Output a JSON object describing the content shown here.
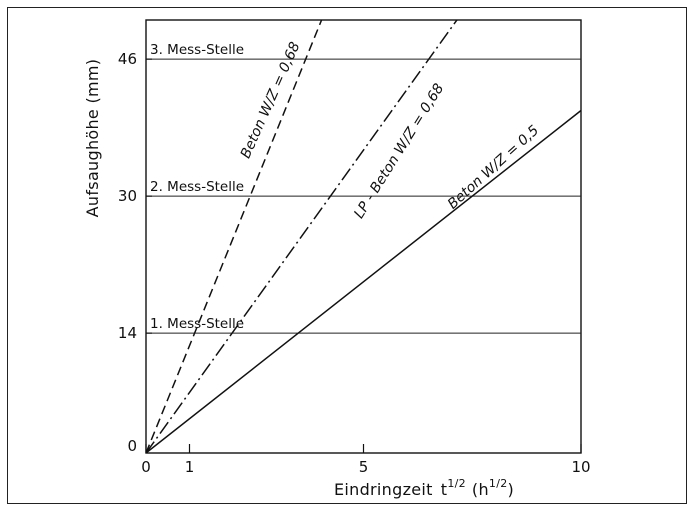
{
  "chart_data": {
    "type": "line",
    "xlabel": "Eindringzeit",
    "xlabel_symbol": "t",
    "xlabel_exp": "1/2",
    "xlabel_unit_open": "(h",
    "xlabel_unit_exp": "1/2",
    "xlabel_unit_close": ")",
    "ylabel": "Aufsaughöhe (mm)",
    "xlim": [
      0,
      10
    ],
    "ylim": [
      0,
      52
    ],
    "x_ticks": [
      {
        "value": 0,
        "label": "0"
      },
      {
        "value": 1,
        "label": "1"
      },
      {
        "value": 5,
        "label": "5"
      },
      {
        "value": 10,
        "label": "10"
      }
    ],
    "y_ticks": [
      {
        "value": 0,
        "label": "0"
      },
      {
        "value": 14,
        "label": "14"
      },
      {
        "value": 30,
        "label": "30"
      },
      {
        "value": 46,
        "label": "46"
      }
    ],
    "reference_lines": [
      {
        "y": 14,
        "label": "1. Mess-Stelle"
      },
      {
        "y": 30,
        "label": "2. Mess-Stelle"
      },
      {
        "y": 46,
        "label": "3. Mess-Stelle"
      }
    ],
    "series": [
      {
        "name": "Beton W/Z = 0,68",
        "style": "dashed",
        "x": [
          0,
          4.15
        ],
        "y": [
          0,
          52
        ],
        "label_at": [
          2.95,
          41
        ],
        "label_angle": -66
      },
      {
        "name": "LP - Beton W/Z = 0,68",
        "style": "dashdot",
        "x": [
          0,
          7.35
        ],
        "y": [
          0,
          52
        ],
        "label_at": [
          5.9,
          35
        ],
        "label_angle": -58
      },
      {
        "name": "Beton W/Z = 0,5",
        "style": "solid",
        "x": [
          0,
          10
        ],
        "y": [
          0,
          40
        ],
        "label_at": [
          8.05,
          33
        ],
        "label_angle": -42
      }
    ],
    "grid": false
  }
}
